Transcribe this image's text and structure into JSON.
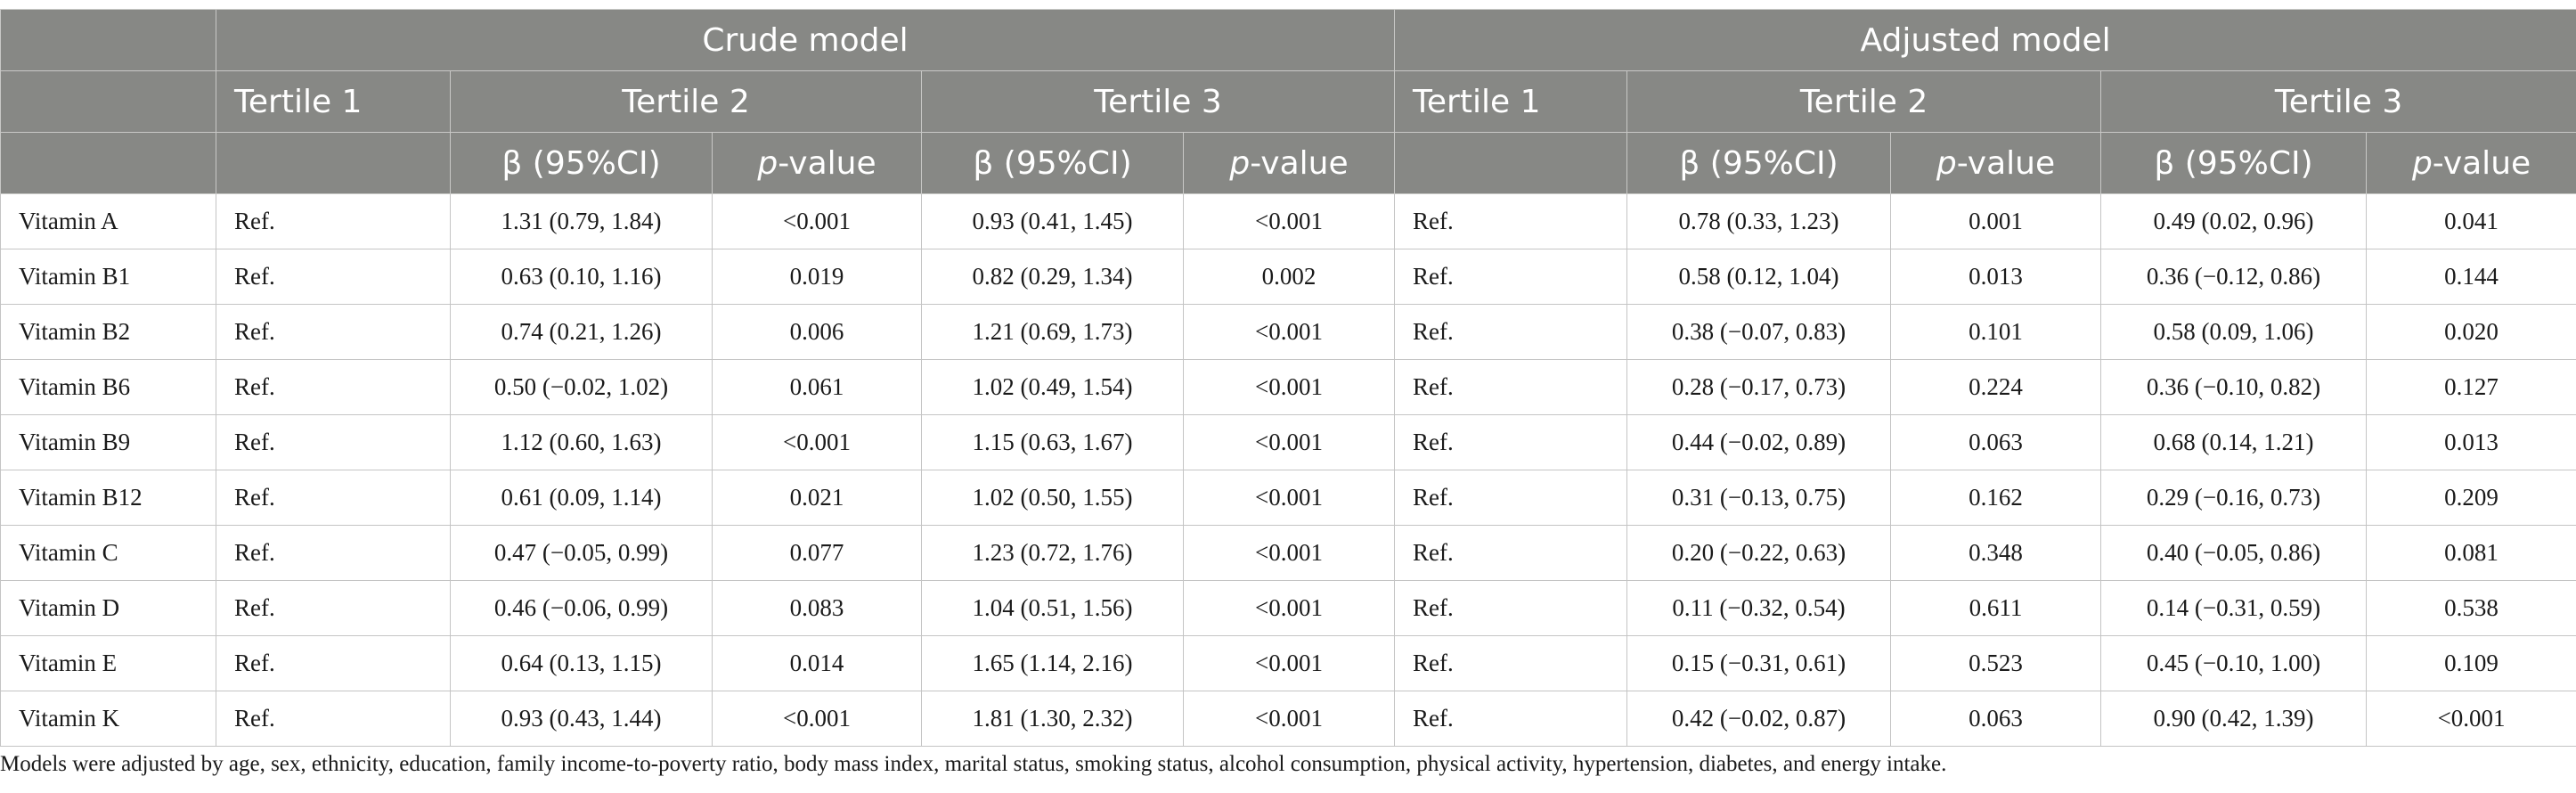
{
  "header": {
    "crude_model": "Crude model",
    "adjusted_model": "Adjusted model",
    "tertile1": "Tertile 1",
    "tertile2": "Tertile 2",
    "tertile3": "Tertile 3",
    "beta_ci": "β (95%CI)",
    "p_italic": "p",
    "p_suffix": "-value"
  },
  "rows": [
    {
      "label": "Vitamin A",
      "c1": "Ref.",
      "c2b": "1.31 (0.79, 1.84)",
      "c2p": "<0.001",
      "c3b": "0.93 (0.41, 1.45)",
      "c3p": "<0.001",
      "a1": "Ref.",
      "a2b": "0.78 (0.33, 1.23)",
      "a2p": "0.001",
      "a3b": "0.49 (0.02, 0.96)",
      "a3p": "0.041"
    },
    {
      "label": "Vitamin B1",
      "c1": "Ref.",
      "c2b": "0.63 (0.10, 1.16)",
      "c2p": "0.019",
      "c3b": "0.82 (0.29, 1.34)",
      "c3p": "0.002",
      "a1": "Ref.",
      "a2b": "0.58 (0.12, 1.04)",
      "a2p": "0.013",
      "a3b": "0.36 (−0.12, 0.86)",
      "a3p": "0.144"
    },
    {
      "label": "Vitamin B2",
      "c1": "Ref.",
      "c2b": "0.74 (0.21, 1.26)",
      "c2p": "0.006",
      "c3b": "1.21 (0.69, 1.73)",
      "c3p": "<0.001",
      "a1": "Ref.",
      "a2b": "0.38 (−0.07, 0.83)",
      "a2p": "0.101",
      "a3b": "0.58 (0.09, 1.06)",
      "a3p": "0.020"
    },
    {
      "label": "Vitamin B6",
      "c1": "Ref.",
      "c2b": "0.50 (−0.02, 1.02)",
      "c2p": "0.061",
      "c3b": "1.02 (0.49, 1.54)",
      "c3p": "<0.001",
      "a1": "Ref.",
      "a2b": "0.28 (−0.17, 0.73)",
      "a2p": "0.224",
      "a3b": "0.36 (−0.10, 0.82)",
      "a3p": "0.127"
    },
    {
      "label": "Vitamin B9",
      "c1": "Ref.",
      "c2b": "1.12 (0.60, 1.63)",
      "c2p": "<0.001",
      "c3b": "1.15 (0.63, 1.67)",
      "c3p": "<0.001",
      "a1": "Ref.",
      "a2b": "0.44 (−0.02, 0.89)",
      "a2p": "0.063",
      "a3b": "0.68 (0.14, 1.21)",
      "a3p": "0.013"
    },
    {
      "label": "Vitamin B12",
      "c1": "Ref.",
      "c2b": "0.61 (0.09, 1.14)",
      "c2p": "0.021",
      "c3b": "1.02 (0.50, 1.55)",
      "c3p": "<0.001",
      "a1": "Ref.",
      "a2b": "0.31 (−0.13, 0.75)",
      "a2p": "0.162",
      "a3b": "0.29 (−0.16, 0.73)",
      "a3p": "0.209"
    },
    {
      "label": "Vitamin C",
      "c1": "Ref.",
      "c2b": "0.47 (−0.05, 0.99)",
      "c2p": "0.077",
      "c3b": "1.23 (0.72, 1.76)",
      "c3p": "<0.001",
      "a1": "Ref.",
      "a2b": "0.20 (−0.22, 0.63)",
      "a2p": "0.348",
      "a3b": "0.40 (−0.05, 0.86)",
      "a3p": "0.081"
    },
    {
      "label": "Vitamin D",
      "c1": "Ref.",
      "c2b": "0.46 (−0.06, 0.99)",
      "c2p": "0.083",
      "c3b": "1.04 (0.51, 1.56)",
      "c3p": "<0.001",
      "a1": "Ref.",
      "a2b": "0.11 (−0.32, 0.54)",
      "a2p": "0.611",
      "a3b": "0.14 (−0.31, 0.59)",
      "a3p": "0.538"
    },
    {
      "label": "Vitamin E",
      "c1": "Ref.",
      "c2b": "0.64 (0.13, 1.15)",
      "c2p": "0.014",
      "c3b": "1.65 (1.14, 2.16)",
      "c3p": "<0.001",
      "a1": "Ref.",
      "a2b": "0.15 (−0.31, 0.61)",
      "a2p": "0.523",
      "a3b": "0.45 (−0.10, 1.00)",
      "a3p": "0.109"
    },
    {
      "label": "Vitamin K",
      "c1": "Ref.",
      "c2b": "0.93 (0.43, 1.44)",
      "c2p": "<0.001",
      "c3b": "1.81 (1.30, 2.32)",
      "c3p": "<0.001",
      "a1": "Ref.",
      "a2b": "0.42 (−0.02, 0.87)",
      "a2p": "0.063",
      "a3b": "0.90 (0.42, 1.39)",
      "a3p": "<0.001"
    }
  ],
  "footnote": "Models were adjusted by age, sex, ethnicity, education, family income-to-poverty ratio, body mass index, marital status, smoking status, alcohol consumption, physical activity, hypertension, diabetes, and energy intake.",
  "colors": {
    "header_bg": "#878885",
    "header_text": "#ffffff",
    "border": "#c4c4c4",
    "body_text": "#1a1a1a"
  }
}
